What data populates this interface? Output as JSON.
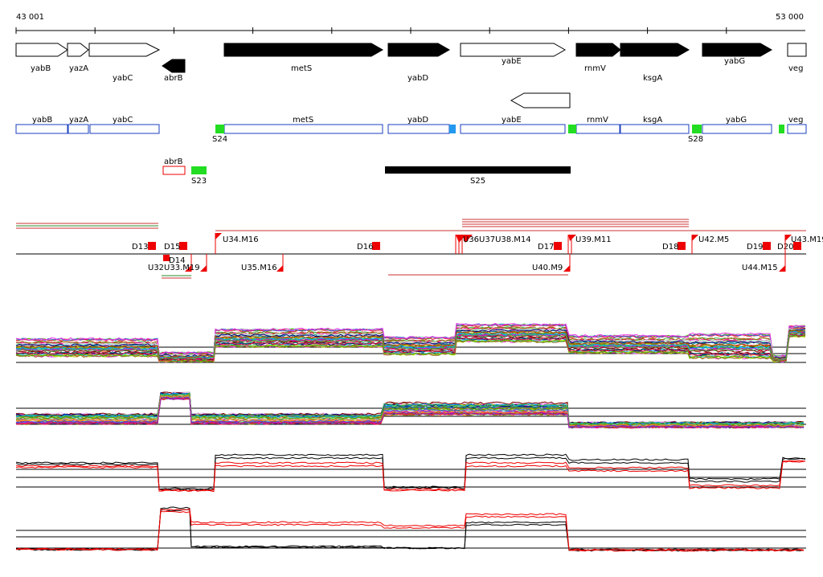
{
  "ruler": {
    "start_label": "43 001",
    "end_label": "53 000"
  },
  "colors": {
    "gene_fill_white": "#ffffff",
    "gene_fill_black": "#000000",
    "annotation_blue": "#1a3fbf",
    "green_marker": "#22dd22",
    "cyan_marker": "#2299ee",
    "red_marker": "#ee0000"
  },
  "genes_forward": [
    {
      "name": "yabB",
      "fill": "white"
    },
    {
      "name": "yazA",
      "fill": "white"
    },
    {
      "name": "yabC",
      "fill": "white"
    },
    {
      "name": "metS",
      "fill": "black"
    },
    {
      "name": "yabD",
      "fill": "black"
    },
    {
      "name": "yabE",
      "fill": "white"
    },
    {
      "name": "rnmV",
      "fill": "black"
    },
    {
      "name": "ksgA",
      "fill": "black"
    },
    {
      "name": "yabG",
      "fill": "black"
    },
    {
      "name": "veg",
      "fill": "white"
    }
  ],
  "genes_reverse": [
    {
      "name": "abrB",
      "fill": "black"
    }
  ],
  "annotation_boxes": [
    "yabB",
    "yazA",
    "yabC",
    "metS",
    "yabD",
    "yabE",
    "rnmV",
    "ksgA",
    "yabG",
    "veg"
  ],
  "markers": [
    "S24",
    "S28",
    "S23",
    "S25"
  ],
  "extra_label": "abrB",
  "downshift_labels": [
    "D13",
    "D14",
    "D15",
    "D16",
    "D17",
    "D18",
    "D19",
    "D20"
  ],
  "upshift_labels_top": [
    "U34.M16",
    "U39.M11",
    "U42.M5",
    "U43.M19"
  ],
  "upshift_labels_bottom": [
    "U35.M16",
    "U40.M9",
    "U44.M15"
  ],
  "overlap_labels": [
    "U32U33.M19",
    "U36U37U38.M14"
  ]
}
